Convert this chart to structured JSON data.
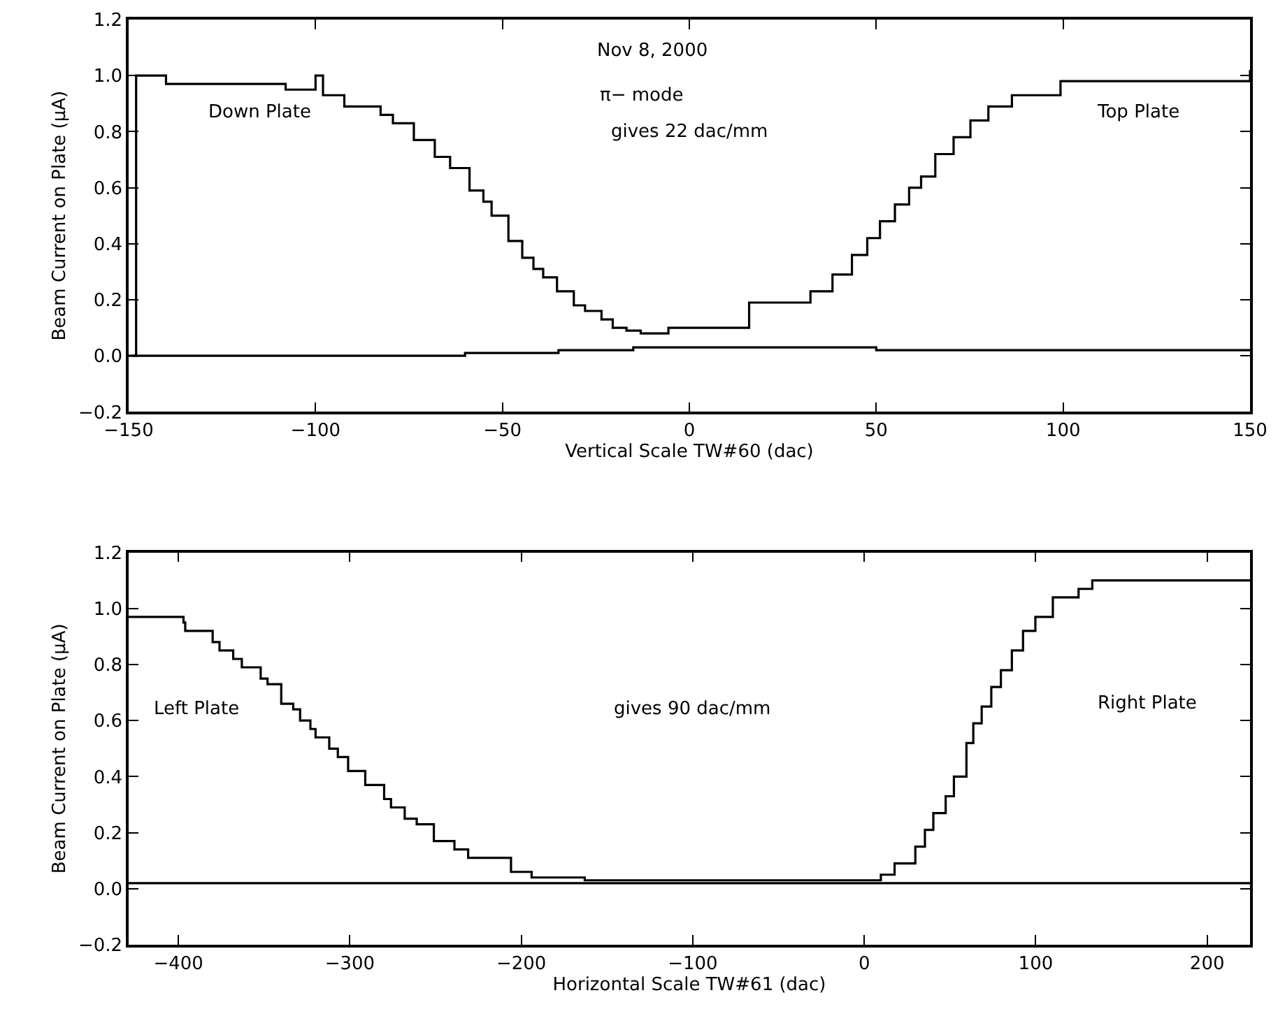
{
  "chart_data": [
    {
      "type": "step",
      "xlabel": "Vertical Scale TW#60 (dac)",
      "ylabel": "Beam Current on Plate (μA)",
      "xlim": [
        -150,
        150
      ],
      "xticks": [
        {
          "value": -150,
          "label": "−150"
        },
        {
          "value": -100,
          "label": "−100"
        },
        {
          "value": -50,
          "label": "−50"
        },
        0,
        50,
        100,
        150
      ],
      "ylim": [
        -0.2,
        1.2
      ],
      "yticks": [
        {
          "value": -0.2,
          "label": "−0.2"
        },
        {
          "value": 0,
          "label": "0.0"
        },
        0.2,
        0.4,
        0.6,
        0.8,
        {
          "value": 1,
          "label": "1.0"
        },
        1.2
      ],
      "marker": "none",
      "line_style": "solid",
      "series": [
        {
          "color": "#000000",
          "x": [
            -149,
            -148,
            -140,
            -108,
            -100,
            -98,
            -92.3,
            -82.6,
            -79.3,
            -73.7,
            -68.1,
            -64,
            -58.8,
            -55.1,
            -52.9,
            -48.4,
            -44.7,
            -41.7,
            -39.1,
            -35.4,
            -30.9,
            -27.9,
            -23.5,
            -20.5,
            -16.8,
            -13,
            -5.6,
            16,
            32.4,
            38.3,
            43.5,
            47.6,
            51,
            55,
            58.8,
            62,
            65.8,
            70.7,
            75.2,
            80,
            86.3,
            99.3,
            150
          ],
          "values": [
            0,
            1.0,
            0.97,
            0.95,
            1.0,
            0.93,
            0.89,
            0.86,
            0.83,
            0.77,
            0.71,
            0.67,
            0.59,
            0.55,
            0.5,
            0.41,
            0.35,
            0.31,
            0.28,
            0.23,
            0.18,
            0.16,
            0.13,
            0.1,
            0.09,
            0.08,
            0.1,
            0.19,
            0.23,
            0.29,
            0.36,
            0.42,
            0.48,
            0.54,
            0.6,
            0.64,
            0.72,
            0.78,
            0.84,
            0.89,
            0.93,
            0.98,
            1.02
          ]
        },
        {
          "color": "#000000",
          "x": [
            -150,
            -60,
            -35,
            -15,
            50,
            150
          ],
          "values": [
            0,
            0.01,
            0.02,
            0.03,
            0.02,
            0.02
          ]
        }
      ],
      "annotations": [
        "Nov 8, 2000",
        "π− mode",
        "gives 22 dac/mm",
        "Down Plate",
        "Top Plate"
      ]
    },
    {
      "type": "step",
      "xlabel": "Horizontal Scale TW#61 (dac)",
      "ylabel": "Beam Current on Plate (μA)",
      "xlim": [
        -429,
        225
      ],
      "xticks": [
        {
          "value": -400,
          "label": "−400"
        },
        {
          "value": -300,
          "label": "−300"
        },
        {
          "value": -200,
          "label": "−200"
        },
        {
          "value": -100,
          "label": "−100"
        },
        0,
        100,
        200
      ],
      "ylim": [
        -0.2,
        1.2
      ],
      "yticks": [
        {
          "value": -0.2,
          "label": "−0.2"
        },
        {
          "value": 0,
          "label": "0.0"
        },
        0.2,
        0.4,
        0.6,
        0.8,
        {
          "value": 1,
          "label": "1.0"
        },
        1.2
      ],
      "marker": "none",
      "line_style": "solid",
      "series": [
        {
          "color": "#000000",
          "x": [
            -429,
            -397,
            -396,
            -380,
            -376,
            -368,
            -363,
            -352,
            -348,
            -340,
            -333,
            -329,
            -323,
            -320,
            -312,
            -307,
            -301,
            -291,
            -280,
            -276,
            -268,
            -261,
            -251,
            -239,
            -231,
            -206,
            -194,
            -163,
            9.7,
            17.7,
            29.8,
            35.4,
            40.3,
            47.5,
            52.3,
            59.6,
            63.6,
            68.5,
            74.1,
            79.7,
            86.1,
            92.6,
            99.8,
            110,
            125,
            133,
            225
          ],
          "values": [
            0.97,
            0.95,
            0.92,
            0.88,
            0.85,
            0.82,
            0.79,
            0.75,
            0.73,
            0.66,
            0.64,
            0.6,
            0.57,
            0.54,
            0.5,
            0.47,
            0.42,
            0.37,
            0.32,
            0.29,
            0.25,
            0.23,
            0.17,
            0.14,
            0.11,
            0.06,
            0.04,
            0.03,
            0.05,
            0.09,
            0.15,
            0.21,
            0.27,
            0.33,
            0.4,
            0.52,
            0.59,
            0.65,
            0.72,
            0.78,
            0.85,
            0.92,
            0.97,
            1.04,
            1.07,
            1.1,
            1.1
          ]
        },
        {
          "color": "#000000",
          "x": [
            -429,
            225
          ],
          "values": [
            0.02,
            0.02
          ]
        }
      ],
      "annotations": [
        "gives 90 dac/mm",
        "Left Plate",
        "Right Plate"
      ]
    }
  ]
}
